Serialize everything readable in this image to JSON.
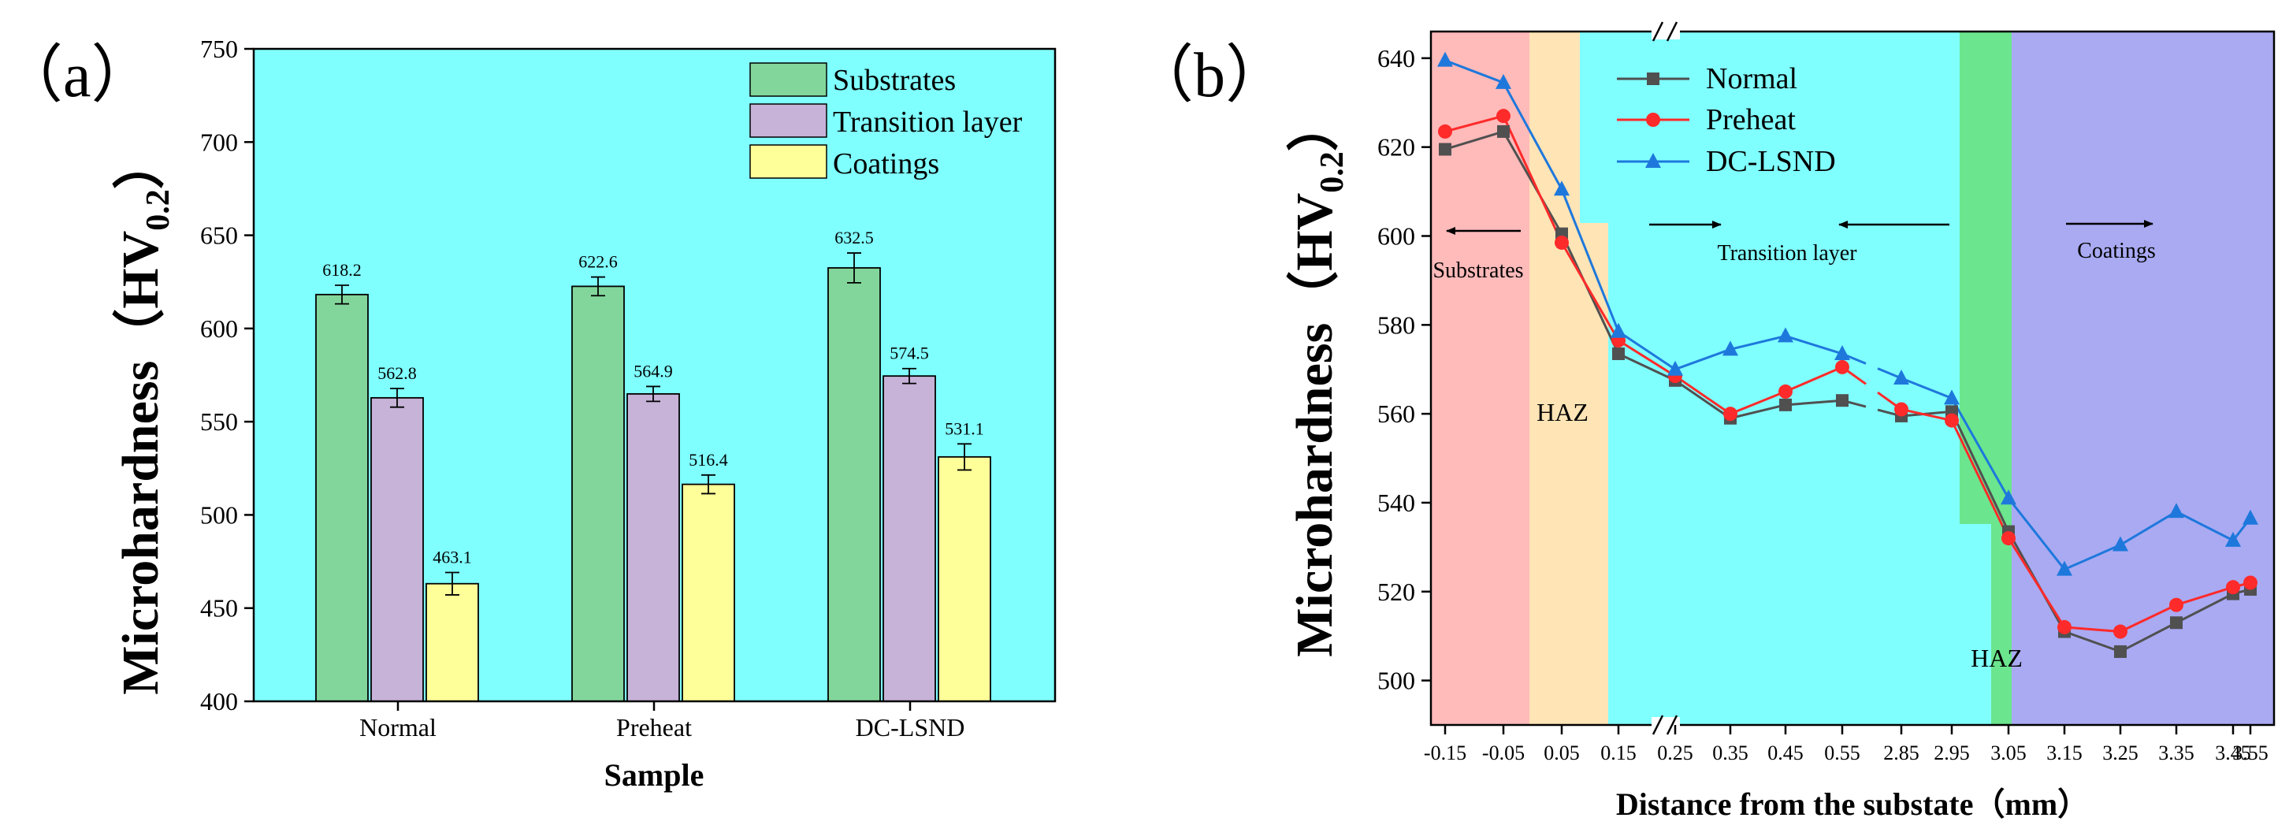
{
  "colors": {
    "cyan": "#80FFFF",
    "substrates": "#83D69B",
    "transition": "#C7B2D8",
    "coatings": "#FFFF99",
    "pink": "#FFBABA",
    "peach": "#FFE4B5",
    "green": "#6BE58E",
    "lavender": "#A9AAF2",
    "normal": "#505050",
    "preheat": "#FF2A2A",
    "dclsnd": "#1E78DC"
  },
  "chart_data": [
    {
      "type": "bar",
      "panel_label": "（a）",
      "title": "",
      "xlabel": "Sample",
      "ylabel_main": "Microhardness（HV",
      "ylabel_sub": "0.2",
      "ylabel_close": "）",
      "ylim": [
        400,
        750
      ],
      "yticks": [
        400,
        450,
        500,
        550,
        600,
        650,
        700,
        750
      ],
      "categories": [
        "Normal",
        "Preheat",
        "DC-LSND"
      ],
      "series": [
        {
          "name": "Substrates",
          "color_key": "substrates",
          "values": [
            618.2,
            622.6,
            632.5
          ],
          "labels": [
            "618.2",
            "622.6",
            "632.5"
          ],
          "errors": [
            5,
            5,
            8
          ]
        },
        {
          "name": "Transition layer",
          "color_key": "transition",
          "values": [
            562.8,
            564.9,
            574.5
          ],
          "labels": [
            "562.8",
            "564.9",
            "574.5"
          ],
          "errors": [
            5,
            4,
            4
          ]
        },
        {
          "name": "Coatings",
          "color_key": "coatings",
          "values": [
            463.1,
            516.4,
            531.1
          ],
          "labels": [
            "463.1",
            "516.4",
            "531.1"
          ],
          "errors": [
            6,
            5,
            7
          ]
        }
      ],
      "legend_position": "top-right"
    },
    {
      "type": "line",
      "panel_label": "（b）",
      "xlabel": "Distance from the substate（mm）",
      "ylabel_main": "Microhardness（HV",
      "ylabel_sub": "0.2",
      "ylabel_close": "）",
      "ylim": [
        490,
        646
      ],
      "yticks": [
        500,
        520,
        540,
        560,
        580,
        600,
        620,
        640
      ],
      "x": [
        "-0.15",
        "-0.05",
        "0.05",
        "0.15",
        "0.25",
        "0.35",
        "0.45",
        "0.55",
        "2.85",
        "2.95",
        "3.05",
        "3.15",
        "3.25",
        "3.35",
        "3.45",
        "3.55"
      ],
      "axis_break_after_index": 7,
      "series": [
        {
          "name": "Normal",
          "color_key": "normal",
          "marker": "square",
          "values": [
            619.5,
            623.5,
            600.5,
            573.5,
            567.5,
            559,
            562,
            563,
            559.5,
            560.5,
            533.5,
            511,
            506.5,
            513,
            519.5,
            520.5
          ]
        },
        {
          "name": "Preheat",
          "color_key": "preheat",
          "marker": "circle",
          "values": [
            623.5,
            627,
            598.5,
            576.5,
            568.5,
            560,
            565,
            570.5,
            561,
            558.5,
            532,
            512,
            511,
            517,
            521,
            522
          ]
        },
        {
          "name": "DC-LSND",
          "color_key": "dclsnd",
          "marker": "triangle",
          "values": [
            639.5,
            634.5,
            610.5,
            578.5,
            570,
            574.5,
            577.5,
            573.5,
            568,
            563.5,
            541,
            525,
            530.5,
            538,
            531.5,
            536.5
          ]
        }
      ],
      "legend_position": "top-left",
      "annotations": {
        "substrates": "Substrates",
        "haz1": "HAZ",
        "transition": "Transition layer",
        "haz2": "HAZ",
        "coatings": "Coatings"
      }
    }
  ]
}
